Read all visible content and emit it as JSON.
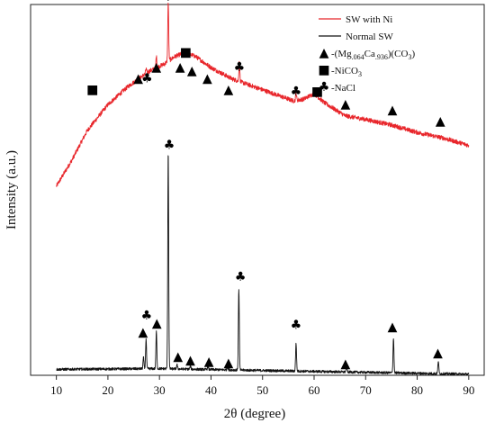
{
  "chart_data": {
    "type": "line",
    "xlabel": "2θ (degree)",
    "ylabel": "Intensity (a.u.)",
    "xlim": [
      5,
      93
    ],
    "x_ticks": [
      10,
      20,
      30,
      40,
      50,
      60,
      70,
      80,
      90
    ],
    "y_ticks_shown": false,
    "grid": false,
    "legend_position": "top-right",
    "colors": {
      "ni": "#e8262b",
      "normal": "#111111"
    },
    "series": [
      {
        "name": "SW with Ni",
        "color": "#e8262b",
        "baseline": [
          [
            10,
            0.51
          ],
          [
            13,
            0.58
          ],
          [
            16,
            0.66
          ],
          [
            20,
            0.73
          ],
          [
            24,
            0.78
          ],
          [
            28,
            0.82
          ],
          [
            31,
            0.84
          ],
          [
            33,
            0.86
          ],
          [
            35,
            0.87
          ],
          [
            37,
            0.86
          ],
          [
            40,
            0.83
          ],
          [
            44,
            0.8
          ],
          [
            48,
            0.78
          ],
          [
            52,
            0.76
          ],
          [
            56,
            0.74
          ],
          [
            58,
            0.745
          ],
          [
            60,
            0.76
          ],
          [
            62,
            0.735
          ],
          [
            66,
            0.7
          ],
          [
            70,
            0.69
          ],
          [
            75,
            0.675
          ],
          [
            80,
            0.655
          ],
          [
            85,
            0.64
          ],
          [
            90,
            0.62
          ]
        ],
        "peaks": [
          [
            29.4,
            0.03
          ],
          [
            31.7,
            0.16
          ],
          [
            45.5,
            0.055
          ],
          [
            56.5,
            0.02
          ],
          [
            27.4,
            0.012
          ]
        ]
      },
      {
        "name": "Normal SW",
        "color": "#111111",
        "baseline": [
          [
            10,
            0.016
          ],
          [
            30,
            0.018
          ],
          [
            50,
            0.013
          ],
          [
            90,
            0.003
          ]
        ],
        "peaks": [
          [
            26.9,
            0.03
          ],
          [
            27.4,
            0.08
          ],
          [
            29.4,
            0.1
          ],
          [
            31.7,
            0.59
          ],
          [
            33.4,
            0.012
          ],
          [
            36.0,
            0.008
          ],
          [
            39.4,
            0.008
          ],
          [
            43.2,
            0.008
          ],
          [
            45.4,
            0.22
          ],
          [
            56.5,
            0.075
          ],
          [
            66.3,
            0.018
          ],
          [
            75.4,
            0.095
          ],
          [
            84.1,
            0.035
          ]
        ]
      }
    ],
    "legend": [
      {
        "type": "line",
        "label": "SW with Ni",
        "color": "#e8262b"
      },
      {
        "type": "line",
        "label": "Normal SW",
        "color": "#111111"
      },
      {
        "type": "marker",
        "symbol": "▲",
        "marker_name": "triangle",
        "label_parts": [
          "-(Mg",
          ".064",
          "Ca",
          ".936",
          ")(CO",
          "3",
          ")"
        ]
      },
      {
        "type": "marker",
        "symbol": "■",
        "marker_name": "square",
        "label_parts": [
          "-NiCO",
          "3"
        ]
      },
      {
        "type": "marker",
        "symbol": "♣",
        "marker_name": "club",
        "label_parts": [
          "-NaCl"
        ]
      }
    ],
    "annotations": {
      "ni": [
        {
          "symbol": "■",
          "x": 17.0,
          "y": 0.77
        },
        {
          "symbol": "▲",
          "x": 25.9,
          "y": 0.8
        },
        {
          "symbol": "♣",
          "x": 27.6,
          "y": 0.8
        },
        {
          "symbol": "▲",
          "x": 29.4,
          "y": 0.83
        },
        {
          "symbol": "♣",
          "x": 31.7,
          "y": 1.02
        },
        {
          "symbol": "■",
          "x": 35.1,
          "y": 0.87
        },
        {
          "symbol": "▲",
          "x": 34.0,
          "y": 0.83
        },
        {
          "symbol": "▲",
          "x": 36.3,
          "y": 0.82
        },
        {
          "symbol": "▲",
          "x": 39.3,
          "y": 0.8
        },
        {
          "symbol": "▲",
          "x": 43.4,
          "y": 0.77
        },
        {
          "symbol": "♣",
          "x": 45.5,
          "y": 0.83
        },
        {
          "symbol": "♣",
          "x": 56.5,
          "y": 0.765
        },
        {
          "symbol": "■",
          "x": 60.6,
          "y": 0.765
        },
        {
          "symbol": "▲",
          "x": 66.1,
          "y": 0.73
        },
        {
          "symbol": "▲",
          "x": 75.2,
          "y": 0.715
        },
        {
          "symbol": "▲",
          "x": 84.5,
          "y": 0.685
        }
      ],
      "normal": [
        {
          "symbol": "▲",
          "x": 26.8,
          "y": 0.115
        },
        {
          "symbol": "♣",
          "x": 27.5,
          "y": 0.16
        },
        {
          "symbol": "▲",
          "x": 29.5,
          "y": 0.14
        },
        {
          "symbol": "♣",
          "x": 31.9,
          "y": 0.62
        },
        {
          "symbol": "▲",
          "x": 33.6,
          "y": 0.05
        },
        {
          "symbol": "▲",
          "x": 36.0,
          "y": 0.04
        },
        {
          "symbol": "▲",
          "x": 39.6,
          "y": 0.037
        },
        {
          "symbol": "▲",
          "x": 43.4,
          "y": 0.033
        },
        {
          "symbol": "♣",
          "x": 45.7,
          "y": 0.265
        },
        {
          "symbol": "♣",
          "x": 56.5,
          "y": 0.135
        },
        {
          "symbol": "▲",
          "x": 66.1,
          "y": 0.03
        },
        {
          "symbol": "▲",
          "x": 75.2,
          "y": 0.13
        },
        {
          "symbol": "▲",
          "x": 84.0,
          "y": 0.06
        }
      ]
    }
  }
}
